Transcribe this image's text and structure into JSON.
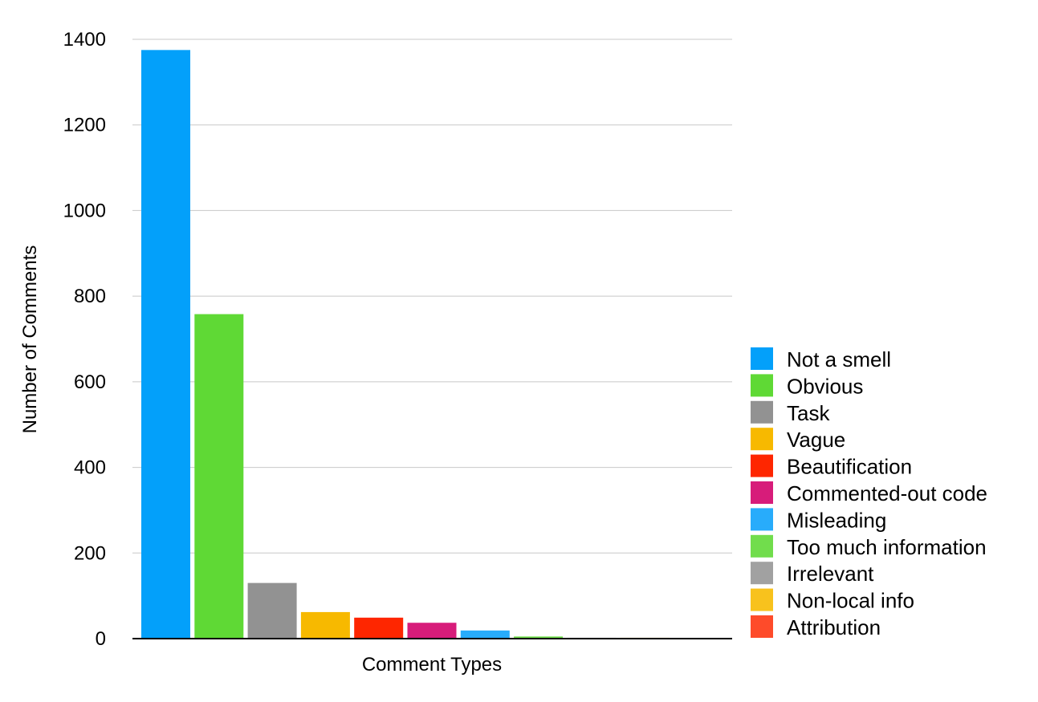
{
  "chart_data": {
    "type": "bar",
    "title": "",
    "xlabel": "Comment Types",
    "ylabel": "Number of Comments",
    "ylim": [
      0,
      1400
    ],
    "yticks": [
      0,
      200,
      400,
      600,
      800,
      1000,
      1200,
      1400
    ],
    "grid": true,
    "legend_position": "right",
    "series": [
      {
        "name": "Not a smell",
        "value": 1375,
        "color": "#03A0FA"
      },
      {
        "name": "Obvious",
        "value": 758,
        "color": "#5FD935"
      },
      {
        "name": "Task",
        "value": 130,
        "color": "#929292"
      },
      {
        "name": "Vague",
        "value": 62,
        "color": "#F7B900"
      },
      {
        "name": "Beautification",
        "value": 49,
        "color": "#FE2600"
      },
      {
        "name": "Commented-out code",
        "value": 37,
        "color": "#D71C7A"
      },
      {
        "name": "Misleading",
        "value": 19,
        "color": "#28ACFB"
      },
      {
        "name": "Too much information",
        "value": 5,
        "color": "#71DD4C"
      },
      {
        "name": "Irrelevant",
        "value": 2,
        "color": "#A1A1A1"
      },
      {
        "name": "Non-local info",
        "value": 2,
        "color": "#F8C21D"
      },
      {
        "name": "Attribution",
        "value": 0,
        "color": "#FE4B2A"
      }
    ]
  }
}
